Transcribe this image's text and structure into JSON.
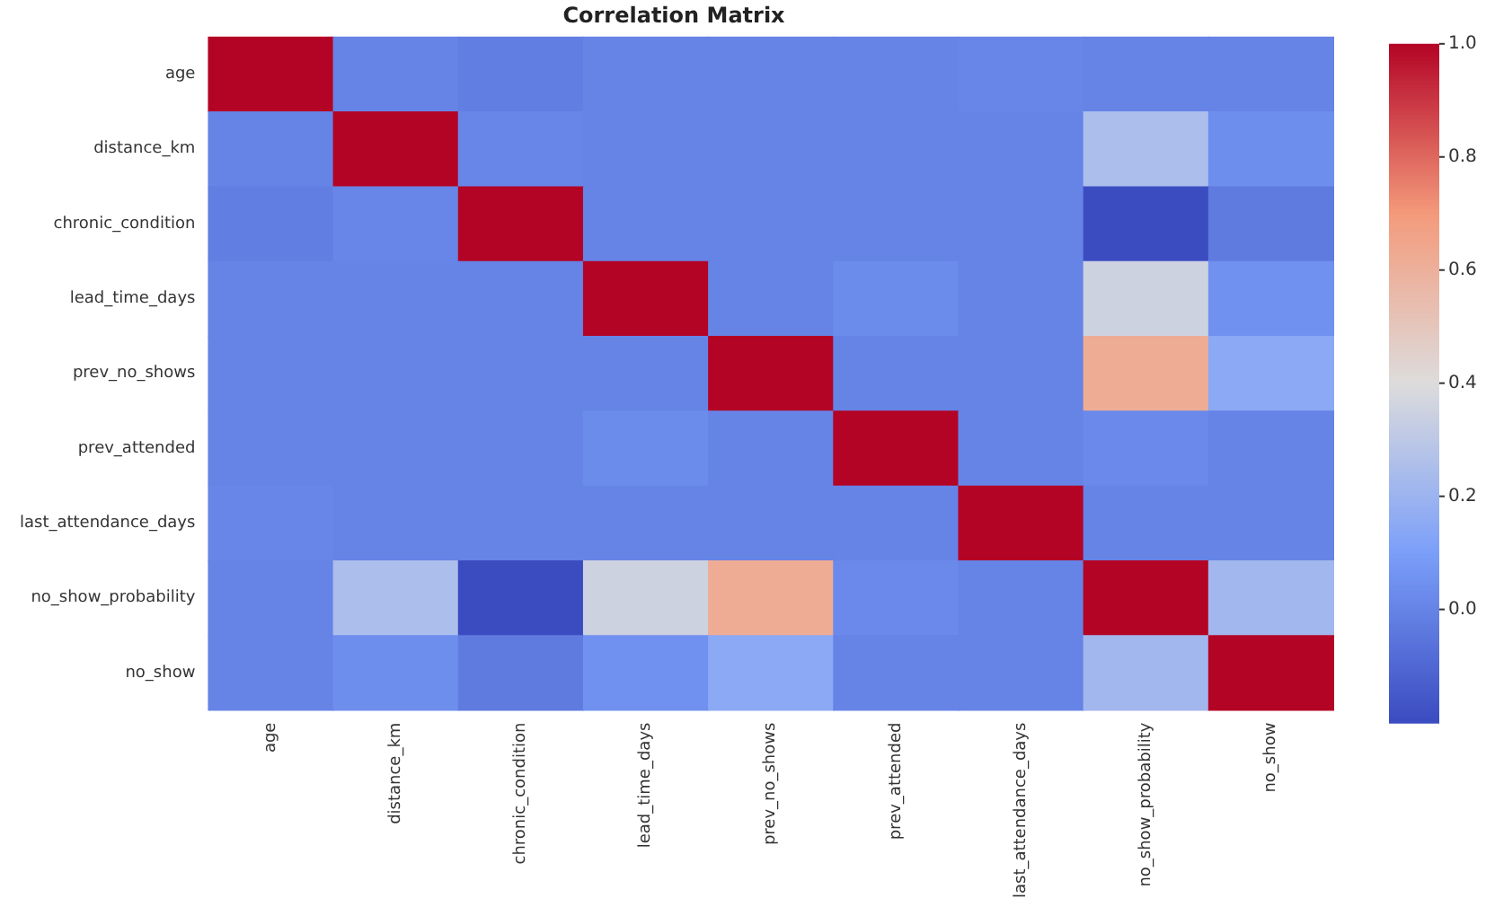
{
  "chart_data": {
    "type": "heatmap",
    "title": "Correlation Matrix",
    "categories": [
      "age",
      "distance_km",
      "chronic_condition",
      "lead_time_days",
      "prev_no_shows",
      "prev_attended",
      "last_attendance_days",
      "no_show_probability",
      "no_show"
    ],
    "y_categories": [
      "age",
      "distance_km",
      "chronic_condition",
      "lead_time_days",
      "prev_no_shows",
      "prev_attended",
      "last_attendance_days",
      "no_show_probability",
      "no_show"
    ],
    "cells": [
      [
        1,
        0,
        -0.02,
        0,
        0,
        0,
        0.01,
        0,
        0
      ],
      [
        0,
        1,
        0.01,
        0,
        0,
        0,
        0,
        0.25,
        0.04
      ],
      [
        -0.02,
        0.01,
        1,
        0,
        0,
        0,
        0,
        -0.2,
        -0.03
      ],
      [
        0,
        0,
        0,
        1,
        0,
        0.03,
        0,
        0.35,
        0.05
      ],
      [
        0,
        0,
        0,
        0,
        1,
        0,
        0,
        0.62,
        0.15
      ],
      [
        0,
        0,
        0,
        0.03,
        0,
        1,
        0,
        0.02,
        0
      ],
      [
        0.01,
        0,
        0,
        0,
        0,
        0,
        1,
        0,
        0
      ],
      [
        0,
        0.25,
        -0.2,
        0.35,
        0.62,
        0.02,
        0,
        1,
        0.22
      ],
      [
        0,
        0.04,
        -0.03,
        0.05,
        0.15,
        0,
        0,
        0.22,
        1
      ]
    ],
    "clim": [
      -0.2,
      1.0
    ],
    "cticks": [
      {
        "value": 0,
        "label": "0.0"
      },
      {
        "value": 0.2,
        "label": "0.2"
      },
      {
        "value": 0.4,
        "label": "0.4"
      },
      {
        "value": 0.6,
        "label": "0.6"
      },
      {
        "value": 0.8,
        "label": "0.8"
      },
      {
        "value": 1,
        "label": "1.0"
      }
    ]
  }
}
